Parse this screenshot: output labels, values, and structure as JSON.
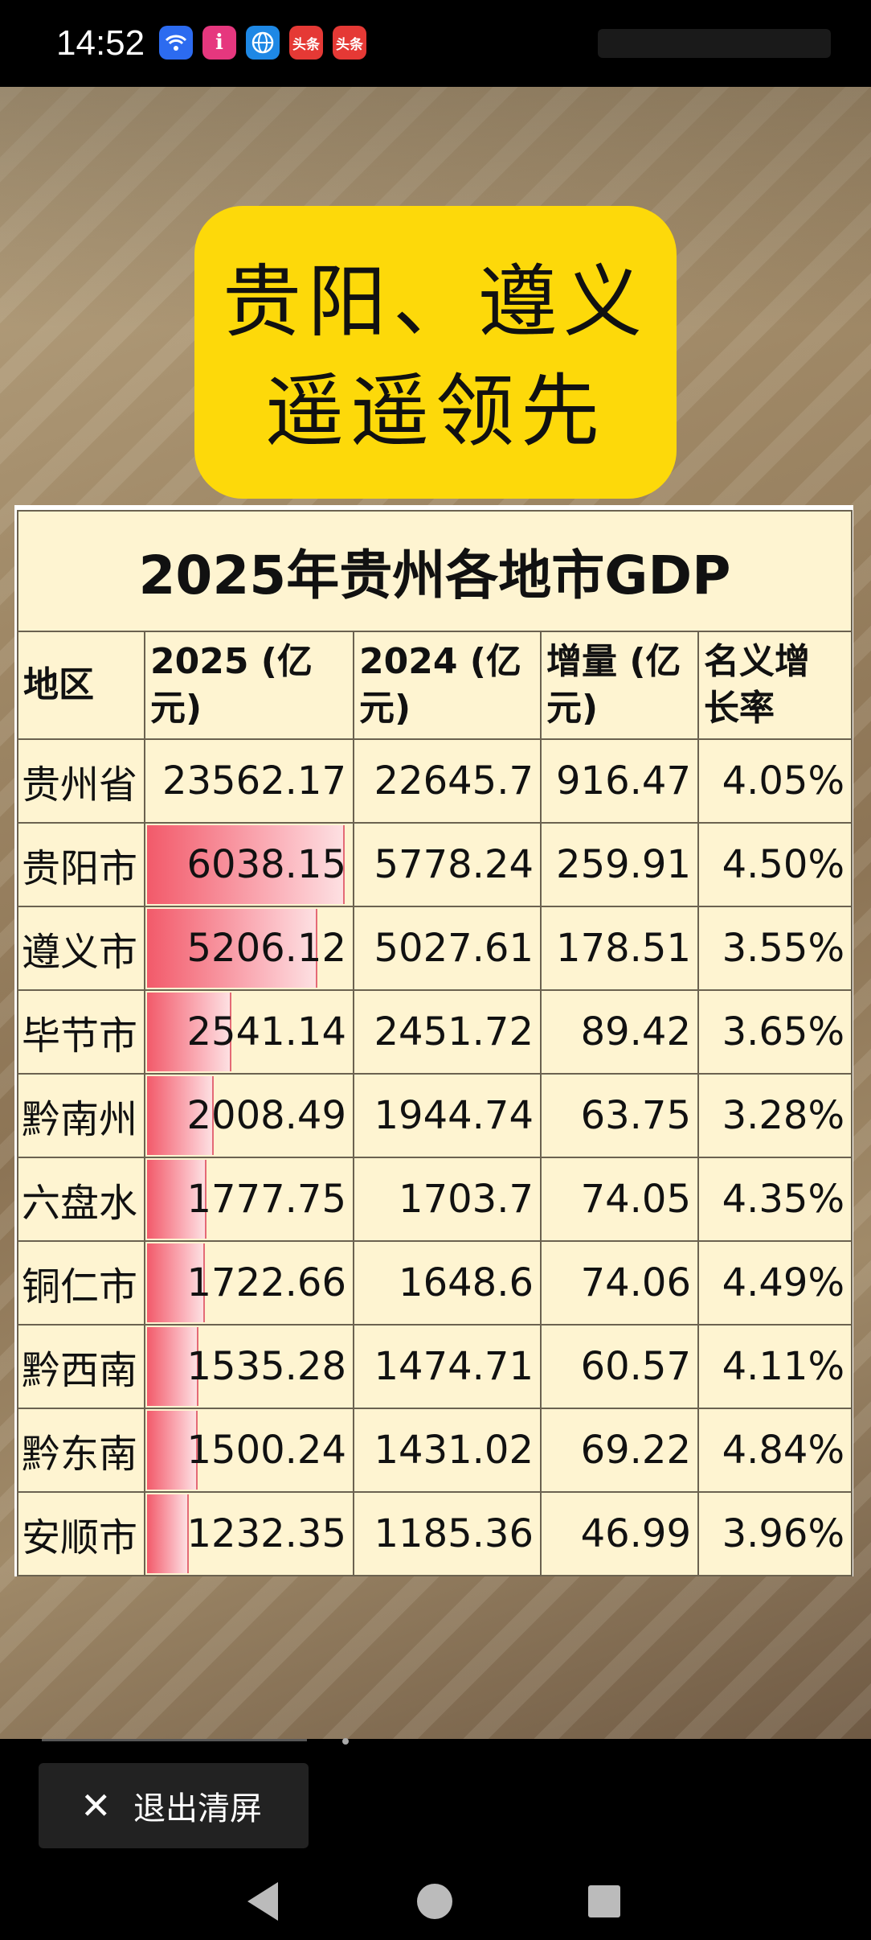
{
  "status_bar": {
    "time": "14:52",
    "icons": [
      {
        "name": "wifi-icon",
        "label": "",
        "color": "#2c6bf0"
      },
      {
        "name": "app-i-icon",
        "label": "i",
        "color": "#e6377e"
      },
      {
        "name": "browser-globe-icon",
        "label": "",
        "color": "#1e88e5"
      },
      {
        "name": "toutiao-icon",
        "label": "头条",
        "color": "#e53935"
      },
      {
        "name": "toutiao-icon-2",
        "label": "头条",
        "color": "#e53935"
      }
    ]
  },
  "title_card": {
    "line1": "贵阳、遵义",
    "line2": "遥遥领先",
    "color": "#fdd90a"
  },
  "table": {
    "title": "2025年贵州各地市GDP",
    "headers": [
      "地区",
      "2025 (亿元)",
      "2024 (亿元)",
      "增量 (亿元)",
      "名义增长率"
    ],
    "header_lines": [
      [
        "地区"
      ],
      [
        "2025 (亿",
        "元)"
      ],
      [
        "2024 (亿",
        "元)"
      ],
      [
        "增量 (亿",
        "元)"
      ],
      [
        "名义增",
        "长率"
      ]
    ],
    "rows": [
      {
        "region": "贵州省",
        "gdp2025": "23562.17",
        "gdp2024": "22645.7",
        "increase": "916.47",
        "growth": "4.05%",
        "bar": 0
      },
      {
        "region": "贵阳市",
        "gdp2025": "6038.15",
        "gdp2024": "5778.24",
        "increase": "259.91",
        "growth": "4.50%",
        "bar": 6038.15
      },
      {
        "region": "遵义市",
        "gdp2025": "5206.12",
        "gdp2024": "5027.61",
        "increase": "178.51",
        "growth": "3.55%",
        "bar": 5206.12
      },
      {
        "region": "毕节市",
        "gdp2025": "2541.14",
        "gdp2024": "2451.72",
        "increase": "89.42",
        "growth": "3.65%",
        "bar": 2541.14
      },
      {
        "region": "黔南州",
        "gdp2025": "2008.49",
        "gdp2024": "1944.74",
        "increase": "63.75",
        "growth": "3.28%",
        "bar": 2008.49
      },
      {
        "region": "六盘水",
        "gdp2025": "1777.75",
        "gdp2024": "1703.7",
        "increase": "74.05",
        "growth": "4.35%",
        "bar": 1777.75
      },
      {
        "region": "铜仁市",
        "gdp2025": "1722.66",
        "gdp2024": "1648.6",
        "increase": "74.06",
        "growth": "4.49%",
        "bar": 1722.66
      },
      {
        "region": "黔西南",
        "gdp2025": "1535.28",
        "gdp2024": "1474.71",
        "increase": "60.57",
        "growth": "4.11%",
        "bar": 1535.28
      },
      {
        "region": "黔东南",
        "gdp2025": "1500.24",
        "gdp2024": "1431.02",
        "increase": "69.22",
        "growth": "4.84%",
        "bar": 1500.24
      },
      {
        "region": "安顺市",
        "gdp2025": "1232.35",
        "gdp2024": "1185.36",
        "increase": "46.99",
        "growth": "3.96%",
        "bar": 1232.35
      }
    ],
    "bar_color": "#f25a6a"
  },
  "bottom": {
    "exit_label": "退出清屏",
    "exit_icon": "close-icon"
  },
  "nav": {
    "back": "back-icon",
    "home": "home-icon",
    "recent": "recent-apps-icon"
  }
}
